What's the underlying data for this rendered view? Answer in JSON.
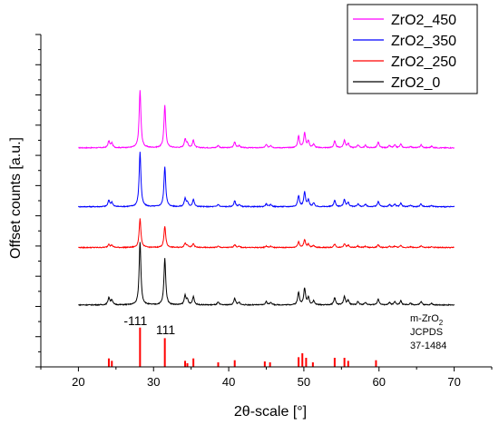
{
  "chart_data": {
    "type": "line",
    "xlabel": "2θ-scale [°]",
    "ylabel": "Offset counts [a.u.]",
    "xlim": [
      15,
      75
    ],
    "xticks": [
      20,
      30,
      40,
      50,
      60,
      70
    ],
    "ylim": [
      0,
      11
    ],
    "y_ticks_labeled": false,
    "grid": false,
    "legend_position": "top-right",
    "peaks": [
      {
        "x": 24.05,
        "h": 0.22
      },
      {
        "x": 24.45,
        "h": 0.15
      },
      {
        "x": 28.2,
        "h": 1.9
      },
      {
        "x": 31.5,
        "h": 1.4
      },
      {
        "x": 34.2,
        "h": 0.28
      },
      {
        "x": 34.5,
        "h": 0.14
      },
      {
        "x": 35.3,
        "h": 0.25
      },
      {
        "x": 38.6,
        "h": 0.08
      },
      {
        "x": 40.8,
        "h": 0.2
      },
      {
        "x": 41.4,
        "h": 0.07
      },
      {
        "x": 45.0,
        "h": 0.1
      },
      {
        "x": 45.6,
        "h": 0.08
      },
      {
        "x": 49.3,
        "h": 0.38
      },
      {
        "x": 50.1,
        "h": 0.5
      },
      {
        "x": 50.6,
        "h": 0.22
      },
      {
        "x": 51.3,
        "h": 0.12
      },
      {
        "x": 54.1,
        "h": 0.22
      },
      {
        "x": 55.4,
        "h": 0.25
      },
      {
        "x": 55.9,
        "h": 0.14
      },
      {
        "x": 57.2,
        "h": 0.1
      },
      {
        "x": 58.2,
        "h": 0.08
      },
      {
        "x": 59.9,
        "h": 0.18
      },
      {
        "x": 61.4,
        "h": 0.07
      },
      {
        "x": 62.1,
        "h": 0.09
      },
      {
        "x": 62.9,
        "h": 0.12
      },
      {
        "x": 64.2,
        "h": 0.05
      },
      {
        "x": 65.6,
        "h": 0.1
      },
      {
        "x": 67.0,
        "h": 0.05
      }
    ],
    "series": [
      {
        "name": "ZrO2_450",
        "color": "#ff00ff",
        "baseline": 7.25,
        "scale": 1.0,
        "x_start": 20,
        "x_end": 70
      },
      {
        "name": "ZrO2_350",
        "color": "#0000ff",
        "baseline": 5.3,
        "scale": 0.95,
        "x_start": 20,
        "x_end": 70
      },
      {
        "name": "ZrO2_250",
        "color": "#ff0000",
        "baseline": 3.95,
        "scale": 0.5,
        "x_start": 20,
        "x_end": 70
      },
      {
        "name": "ZrO2_0",
        "color": "#000000",
        "baseline": 2.05,
        "scale": 1.1,
        "x_start": 20,
        "x_end": 70
      }
    ],
    "reference": {
      "color": "#ff0000",
      "text_lines": [
        "JCPDS",
        "37-1484"
      ],
      "phase_main": "m-ZrO",
      "phase_sub": "2",
      "bars": [
        {
          "x": 24.05,
          "y": 0.28
        },
        {
          "x": 24.45,
          "y": 0.2
        },
        {
          "x": 28.2,
          "y": 1.3
        },
        {
          "x": 31.5,
          "y": 0.95
        },
        {
          "x": 34.2,
          "y": 0.2
        },
        {
          "x": 34.5,
          "y": 0.12
        },
        {
          "x": 35.3,
          "y": 0.28
        },
        {
          "x": 38.6,
          "y": 0.15
        },
        {
          "x": 40.8,
          "y": 0.22
        },
        {
          "x": 44.8,
          "y": 0.18
        },
        {
          "x": 45.5,
          "y": 0.15
        },
        {
          "x": 49.3,
          "y": 0.32
        },
        {
          "x": 49.8,
          "y": 0.45
        },
        {
          "x": 50.3,
          "y": 0.3
        },
        {
          "x": 51.2,
          "y": 0.15
        },
        {
          "x": 54.1,
          "y": 0.3
        },
        {
          "x": 55.4,
          "y": 0.3
        },
        {
          "x": 55.9,
          "y": 0.2
        },
        {
          "x": 59.6,
          "y": 0.22
        }
      ],
      "peak_labels": [
        {
          "text": "-111",
          "x": 27.6,
          "y": 1.38
        },
        {
          "text": "111",
          "x": 31.6,
          "y": 1.08
        }
      ]
    }
  }
}
